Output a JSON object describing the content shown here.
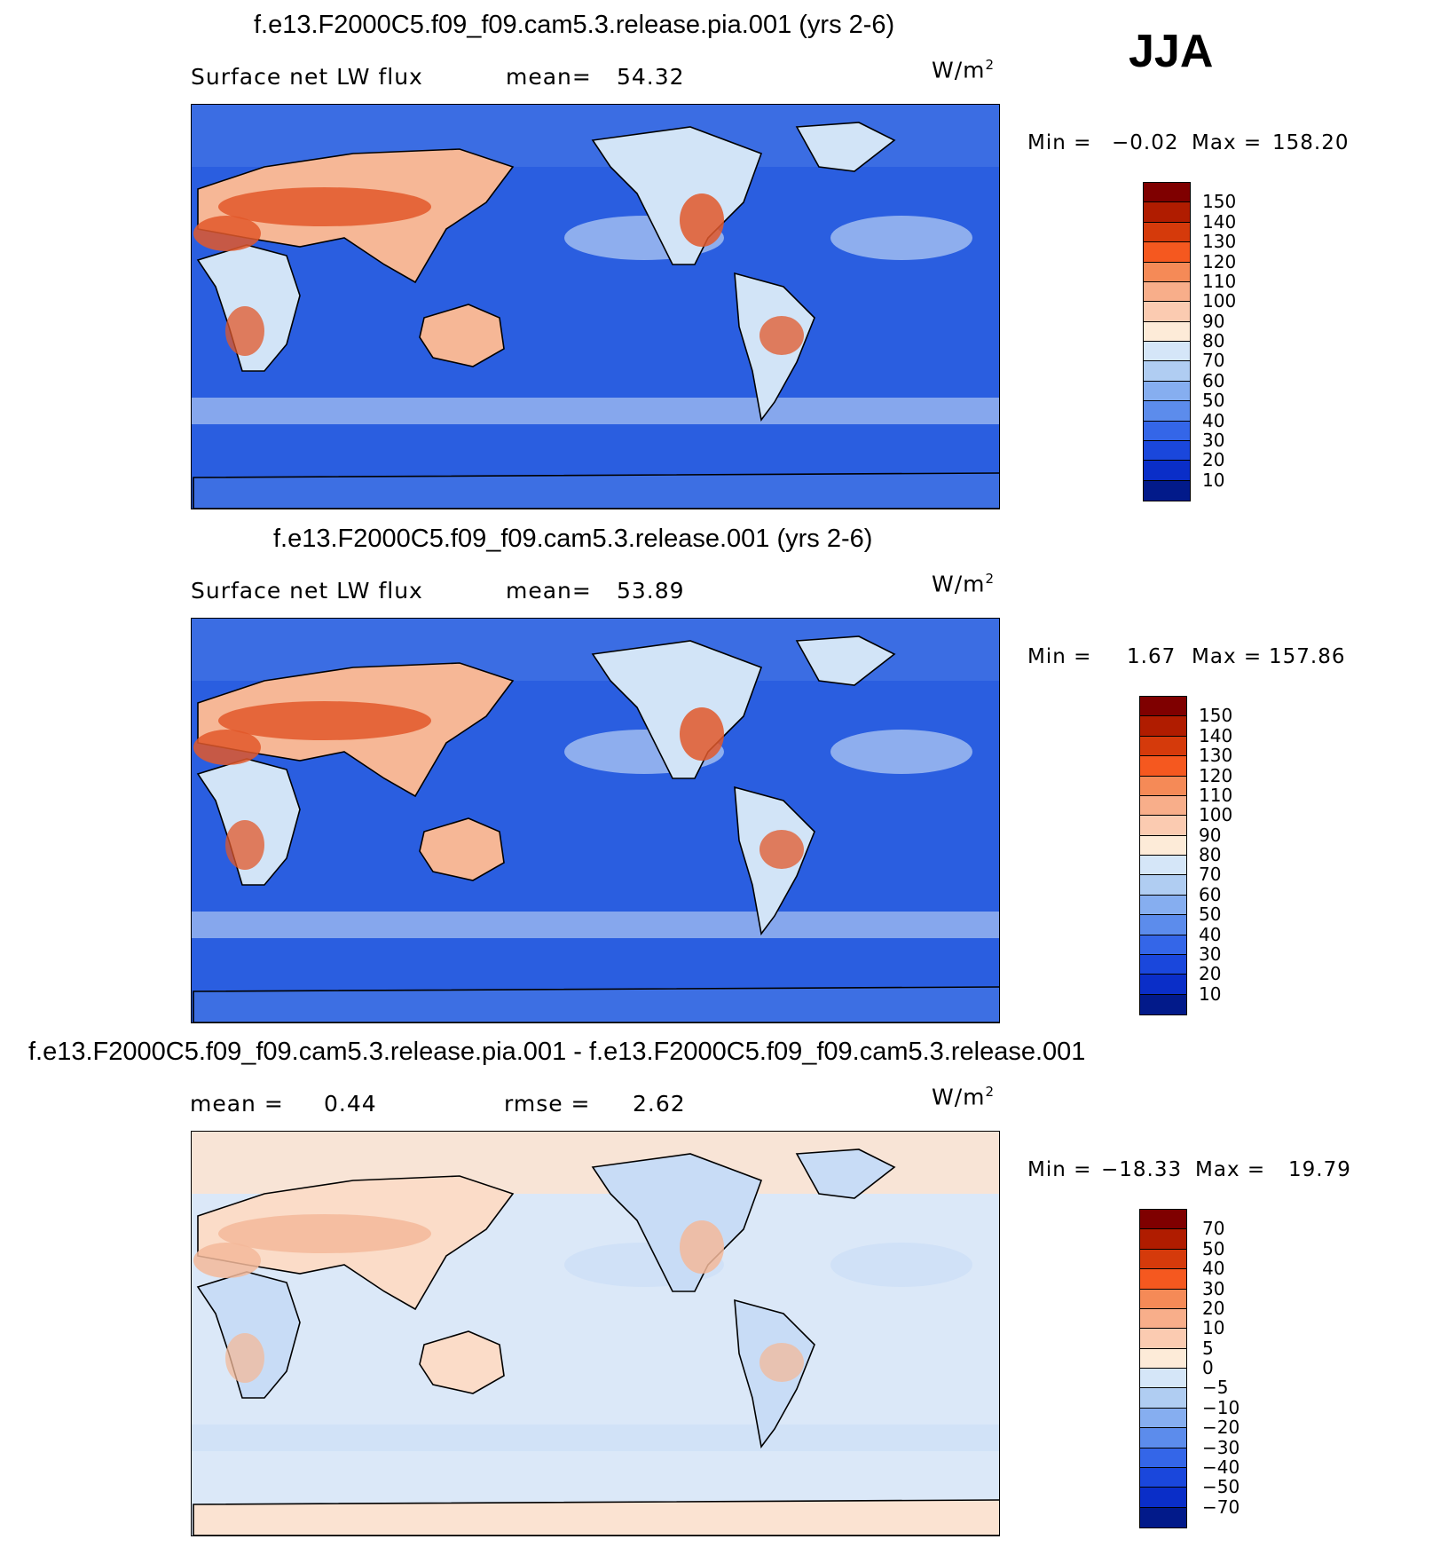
{
  "season": "JJA",
  "chart_data": [
    {
      "type": "heatmap",
      "title": "f.e13.F2000C5.f09_f09.cam5.3.release.pia.001 (yrs 2-6)",
      "left_label": "Surface net LW flux",
      "stat_label": "mean=",
      "stat_value": "54.32",
      "units_base": "W/m",
      "units_exp": "2",
      "min_label": "Min =",
      "min_value": "−0.02",
      "max_label": "Max =",
      "max_value": "158.20",
      "levels": [
        "150",
        "140",
        "130",
        "120",
        "110",
        "100",
        "90",
        "80",
        "70",
        "60",
        "50",
        "40",
        "30",
        "20",
        "10"
      ],
      "colors": [
        "#7f0000",
        "#b01c00",
        "#d53a0b",
        "#f5581f",
        "#f58a57",
        "#f8ae8a",
        "#fbcbb1",
        "#fdebd8",
        "#d5e6f8",
        "#b0cdf2",
        "#86aef0",
        "#5c8cec",
        "#3466e8",
        "#1a47dc",
        "#0a2ec8",
        "#021a8a"
      ],
      "map": {
        "ocean": "#2a5ee0",
        "land_hot": "#e2582a",
        "land_warm": "#f6b796",
        "land_cool": "#d2e4f7",
        "polar": "#3d6fe3"
      }
    },
    {
      "type": "heatmap",
      "title": "f.e13.F2000C5.f09_f09.cam5.3.release.001 (yrs 2-6)",
      "left_label": "Surface net LW flux",
      "stat_label": "mean=",
      "stat_value": "53.89",
      "units_base": "W/m",
      "units_exp": "2",
      "min_label": "Min =",
      "min_value": "1.67",
      "max_label": "Max =",
      "max_value": "157.86",
      "levels": [
        "150",
        "140",
        "130",
        "120",
        "110",
        "100",
        "90",
        "80",
        "70",
        "60",
        "50",
        "40",
        "30",
        "20",
        "10"
      ],
      "colors": [
        "#7f0000",
        "#b01c00",
        "#d53a0b",
        "#f5581f",
        "#f58a57",
        "#f8ae8a",
        "#fbcbb1",
        "#fdebd8",
        "#d5e6f8",
        "#b0cdf2",
        "#86aef0",
        "#5c8cec",
        "#3466e8",
        "#1a47dc",
        "#0a2ec8",
        "#021a8a"
      ],
      "map": {
        "ocean": "#2a5ee0",
        "land_hot": "#e2582a",
        "land_warm": "#f6b796",
        "land_cool": "#d2e4f7",
        "polar": "#3d6fe3"
      }
    },
    {
      "type": "heatmap",
      "title": "f.e13.F2000C5.f09_f09.cam5.3.release.pia.001 - f.e13.F2000C5.f09_f09.cam5.3.release.001",
      "left_label": "mean =",
      "left_value": "0.44",
      "stat_label": "rmse =",
      "stat_value": "2.62",
      "units_base": "W/m",
      "units_exp": "2",
      "min_label": "Min =",
      "min_value": "−18.33",
      "max_label": "Max =",
      "max_value": "19.79",
      "levels": [
        "70",
        "50",
        "40",
        "30",
        "20",
        "10",
        "5",
        "0",
        "−5",
        "−10",
        "−20",
        "−30",
        "−40",
        "−50",
        "−70"
      ],
      "colors": [
        "#7f0000",
        "#b01c00",
        "#d53a0b",
        "#f5581f",
        "#f58a57",
        "#f8ae8a",
        "#fbcbb1",
        "#fdebd8",
        "#d5e6f8",
        "#b0cdf2",
        "#86aef0",
        "#5c8cec",
        "#3466e8",
        "#1a47dc",
        "#0a2ec8",
        "#021a8a"
      ],
      "map": {
        "ocean": "#dbe8f8",
        "land_hot": "#f3b99a",
        "land_warm": "#fbdcc8",
        "land_cool": "#c8dcf6",
        "polar": "#fbe3d2"
      }
    }
  ]
}
